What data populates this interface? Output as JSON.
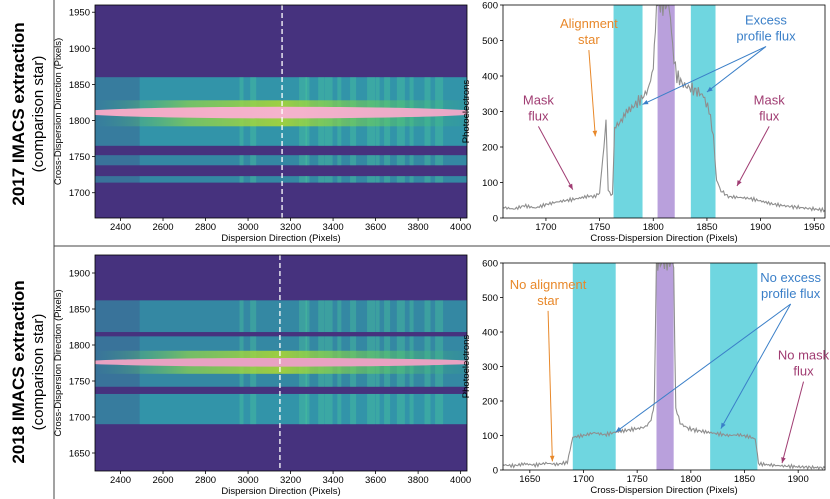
{
  "figure": {
    "rows": [
      {
        "line1": "2017 IMACS extraction",
        "line2": "(comparison star)"
      },
      {
        "line1": "2018 IMACS extraction",
        "line2": "(comparison star)"
      }
    ],
    "colors": {
      "cyan": "#6fd6e0",
      "purple": "#b9a0dc",
      "orange": "#e8882a",
      "blue": "#3a7fc8",
      "magenta": "#a03c72",
      "trace": "#8e8e8e",
      "bg": "#46327e"
    }
  },
  "chart_data": [
    {
      "id": "img2017",
      "type": "heatmap",
      "xlabel": "Dispersion Direction (Pixels)",
      "ylabel": "Cross-Dispersion Direction (Pixels)",
      "xlim": [
        2280,
        4030
      ],
      "ylim": [
        1665,
        1960
      ],
      "xticks": [
        2400,
        2600,
        2800,
        3000,
        3200,
        3400,
        3600,
        3800,
        4000
      ],
      "yticks": [
        1700,
        1750,
        1800,
        1850,
        1900,
        1950
      ],
      "dashed_x": 3160,
      "slit_bands": [
        [
          1765,
          1860
        ],
        [
          1738,
          1752
        ],
        [
          1714,
          1723
        ]
      ],
      "bright_core": [
        1802,
        1818
      ],
      "star_y": 1811
    },
    {
      "id": "prof2017",
      "type": "line",
      "xlabel": "Cross-Dispersion Direction (Pixels)",
      "ylabel": "Photoelectrons",
      "xlim": [
        1660,
        1960
      ],
      "ylim": [
        0,
        600
      ],
      "xticks": [
        1700,
        1750,
        1800,
        1850,
        1900,
        1950
      ],
      "yticks": [
        0,
        100,
        200,
        300,
        400,
        500,
        600
      ],
      "cyan_spans": [
        [
          1763,
          1790
        ],
        [
          1835,
          1858
        ]
      ],
      "purple_span": [
        1804,
        1820
      ],
      "profile": [
        [
          1660,
          30
        ],
        [
          1670,
          25
        ],
        [
          1680,
          35
        ],
        [
          1690,
          28
        ],
        [
          1700,
          38
        ],
        [
          1710,
          45
        ],
        [
          1720,
          50
        ],
        [
          1730,
          55
        ],
        [
          1740,
          62
        ],
        [
          1745,
          60
        ],
        [
          1750,
          70
        ],
        [
          1753,
          175
        ],
        [
          1756,
          265
        ],
        [
          1758,
          75
        ],
        [
          1762,
          65
        ],
        [
          1764,
          255
        ],
        [
          1770,
          272
        ],
        [
          1775,
          300
        ],
        [
          1780,
          310
        ],
        [
          1785,
          325
        ],
        [
          1790,
          340
        ],
        [
          1795,
          360
        ],
        [
          1800,
          420
        ],
        [
          1803,
          600
        ],
        [
          1815,
          600
        ],
        [
          1818,
          470
        ],
        [
          1822,
          400
        ],
        [
          1828,
          375
        ],
        [
          1835,
          365
        ],
        [
          1842,
          355
        ],
        [
          1848,
          340
        ],
        [
          1852,
          300
        ],
        [
          1856,
          235
        ],
        [
          1859,
          110
        ],
        [
          1862,
          80
        ],
        [
          1870,
          60
        ],
        [
          1880,
          58
        ],
        [
          1890,
          55
        ],
        [
          1900,
          48
        ],
        [
          1910,
          40
        ],
        [
          1920,
          35
        ],
        [
          1935,
          30
        ],
        [
          1950,
          25
        ],
        [
          1960,
          22
        ]
      ],
      "annotations": [
        {
          "text1": "Alignment",
          "text2": "star",
          "color": "orange",
          "tx": 1740,
          "ty": 535,
          "ax": 1746,
          "ay": 230
        },
        {
          "text1": "Excess",
          "text2": "profile flux",
          "color": "blue",
          "tx": 1905,
          "ty": 545,
          "ax": 1790,
          "ay": 320,
          "ax2": 1850,
          "ay2": 355
        },
        {
          "text1": "Mask",
          "text2": "flux",
          "color": "magenta",
          "tx": 1693,
          "ty": 320,
          "ax": 1725,
          "ay": 80
        },
        {
          "text1": "Mask",
          "text2": "flux",
          "color": "magenta",
          "tx": 1908,
          "ty": 320,
          "ax": 1878,
          "ay": 90
        }
      ]
    },
    {
      "id": "img2018",
      "type": "heatmap",
      "xlabel": "Dispersion Direction (Pixels)",
      "ylabel": "Cross-Dispersion Direction (Pixels)",
      "xlim": [
        2280,
        4030
      ],
      "ylim": [
        1625,
        1925
      ],
      "xticks": [
        2400,
        2600,
        2800,
        3000,
        3200,
        3400,
        3600,
        3800,
        4000
      ],
      "yticks": [
        1650,
        1700,
        1750,
        1800,
        1850,
        1900
      ],
      "dashed_x": 3150,
      "slit_bands": [
        [
          1690,
          1732
        ],
        [
          1742,
          1812
        ],
        [
          1818,
          1862
        ]
      ],
      "bright_core": [
        1770,
        1782
      ],
      "star_y": 1776
    },
    {
      "id": "prof2018",
      "type": "line",
      "xlabel": "Cross-Dispersion Direction (Pixels)",
      "ylabel": "Photoelectrons",
      "xlim": [
        1625,
        1925
      ],
      "ylim": [
        0,
        600
      ],
      "xticks": [
        1650,
        1700,
        1750,
        1800,
        1850,
        1900
      ],
      "yticks": [
        0,
        100,
        200,
        300,
        400,
        500,
        600
      ],
      "cyan_spans": [
        [
          1690,
          1730
        ],
        [
          1818,
          1862
        ]
      ],
      "purple_span": [
        1768,
        1784
      ],
      "profile": [
        [
          1625,
          15
        ],
        [
          1635,
          12
        ],
        [
          1645,
          18
        ],
        [
          1655,
          14
        ],
        [
          1665,
          20
        ],
        [
          1675,
          16
        ],
        [
          1685,
          22
        ],
        [
          1690,
          95
        ],
        [
          1700,
          100
        ],
        [
          1710,
          108
        ],
        [
          1720,
          102
        ],
        [
          1730,
          110
        ],
        [
          1740,
          115
        ],
        [
          1750,
          120
        ],
        [
          1758,
          125
        ],
        [
          1763,
          145
        ],
        [
          1766,
          200
        ],
        [
          1768,
          600
        ],
        [
          1784,
          600
        ],
        [
          1786,
          180
        ],
        [
          1790,
          135
        ],
        [
          1798,
          120
        ],
        [
          1805,
          115
        ],
        [
          1815,
          110
        ],
        [
          1825,
          105
        ],
        [
          1835,
          100
        ],
        [
          1845,
          102
        ],
        [
          1855,
          96
        ],
        [
          1860,
          90
        ],
        [
          1863,
          18
        ],
        [
          1875,
          14
        ],
        [
          1885,
          12
        ],
        [
          1895,
          10
        ],
        [
          1910,
          8
        ],
        [
          1925,
          6
        ]
      ],
      "annotations": [
        {
          "text1": "No alignment",
          "text2": "star",
          "color": "orange",
          "tx": 1667,
          "ty": 525,
          "ax": 1671,
          "ay": 25
        },
        {
          "text1": "No excess",
          "text2": "profile flux",
          "color": "blue",
          "tx": 1893,
          "ty": 545,
          "ax": 1730,
          "ay": 110,
          "ax2": 1828,
          "ay2": 120
        },
        {
          "text1": "No mask",
          "text2": "flux",
          "color": "magenta",
          "tx": 1905,
          "ty": 320,
          "ax": 1885,
          "ay": 20
        }
      ]
    }
  ]
}
